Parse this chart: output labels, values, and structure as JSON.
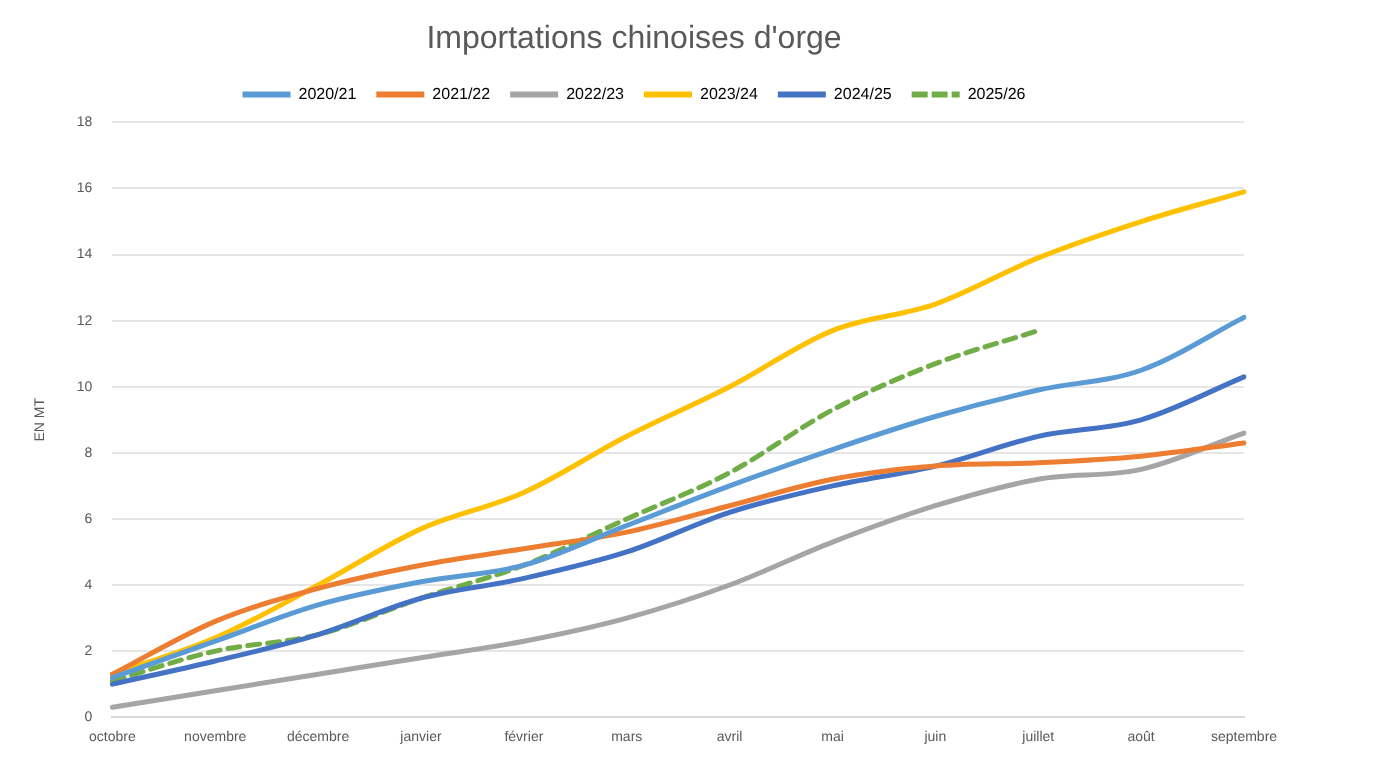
{
  "chart_data": {
    "type": "line",
    "title": "Importations chinoises d'orge",
    "ylabel": "EN MT",
    "categories": [
      "octobre",
      "novembre",
      "décembre",
      "janvier",
      "février",
      "mars",
      "avril",
      "mai",
      "juin",
      "juillet",
      "août",
      "septembre"
    ],
    "series": [
      {
        "name": "2020/21",
        "color": "#5b9bd5",
        "values": [
          1.2,
          2.3,
          3.4,
          4.1,
          4.6,
          5.8,
          7.0,
          8.1,
          9.1,
          9.9,
          10.5,
          12.1
        ]
      },
      {
        "name": "2021/22",
        "color": "#ed7d31",
        "values": [
          1.3,
          2.9,
          3.9,
          4.6,
          5.1,
          5.6,
          6.4,
          7.2,
          7.6,
          7.7,
          7.9,
          8.3
        ]
      },
      {
        "name": "2022/23",
        "color": "#a5a5a5",
        "values": [
          0.3,
          0.8,
          1.3,
          1.8,
          2.3,
          3.0,
          4.0,
          5.3,
          6.4,
          7.2,
          7.5,
          8.6
        ]
      },
      {
        "name": "2023/24",
        "color": "#ffc000",
        "values": [
          1.3,
          2.4,
          4.0,
          5.7,
          6.8,
          8.5,
          10.0,
          11.7,
          12.5,
          13.9,
          15.0,
          15.9
        ]
      },
      {
        "name": "2024/25",
        "color": "#4472c4",
        "values": [
          1.0,
          1.7,
          2.5,
          3.6,
          4.2,
          5.0,
          6.2,
          7.0,
          7.6,
          8.5,
          9.0,
          10.3
        ]
      },
      {
        "name": "2025/26",
        "color": "#70ad47",
        "line_style": "dashed",
        "values": [
          1.1,
          2.0,
          2.5,
          3.6,
          4.6,
          6.0,
          7.4,
          9.3,
          10.7,
          11.7,
          null,
          null
        ]
      }
    ],
    "ylim": [
      0,
      18
    ],
    "yticks": [
      0,
      2,
      4,
      6,
      8,
      10,
      12,
      14,
      16,
      18
    ],
    "grid": "y",
    "legend": "top",
    "marker": "none",
    "line_style": "solid"
  }
}
